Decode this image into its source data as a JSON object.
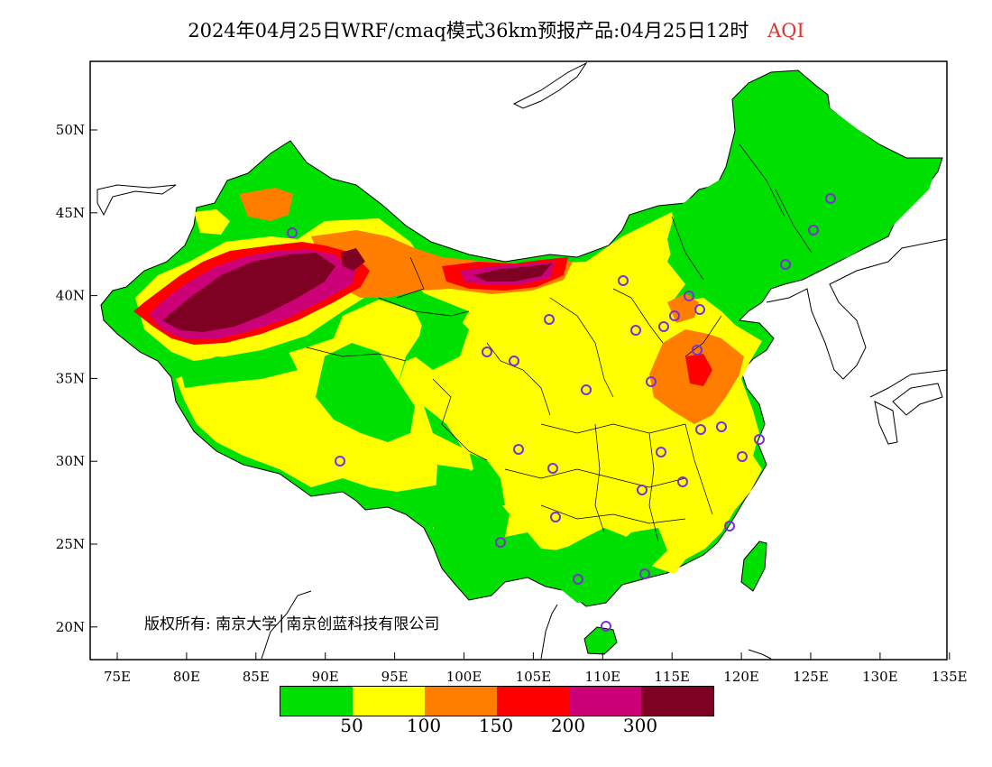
{
  "title": {
    "product": "2024年04月25日WRF/cmaq模式36km预报产品:04月25日12时",
    "variable": "AQI"
  },
  "map": {
    "x_ticks": [
      "75E",
      "80E",
      "85E",
      "90E",
      "95E",
      "100E",
      "105E",
      "110E",
      "115E",
      "120E",
      "125E",
      "130E",
      "135E"
    ],
    "y_ticks": [
      "50N",
      "45N",
      "40N",
      "35N",
      "30N",
      "25N",
      "20N"
    ],
    "copyright": "版权所有: 南京大学│南京创蓝科技有限公司",
    "colors": {
      "green": "#00e000",
      "yellow": "#ffff00",
      "orange": "#ff7e00",
      "red": "#ff0000",
      "purple": "#cc0077",
      "maroon": "#7e0023",
      "station_marker": "#7b2fd6"
    }
  },
  "legend": {
    "colors": [
      "#00e000",
      "#ffff00",
      "#ff7e00",
      "#ff0000",
      "#cc0077",
      "#7e0023"
    ],
    "labels": [
      "50",
      "100",
      "150",
      "200",
      "300"
    ]
  }
}
